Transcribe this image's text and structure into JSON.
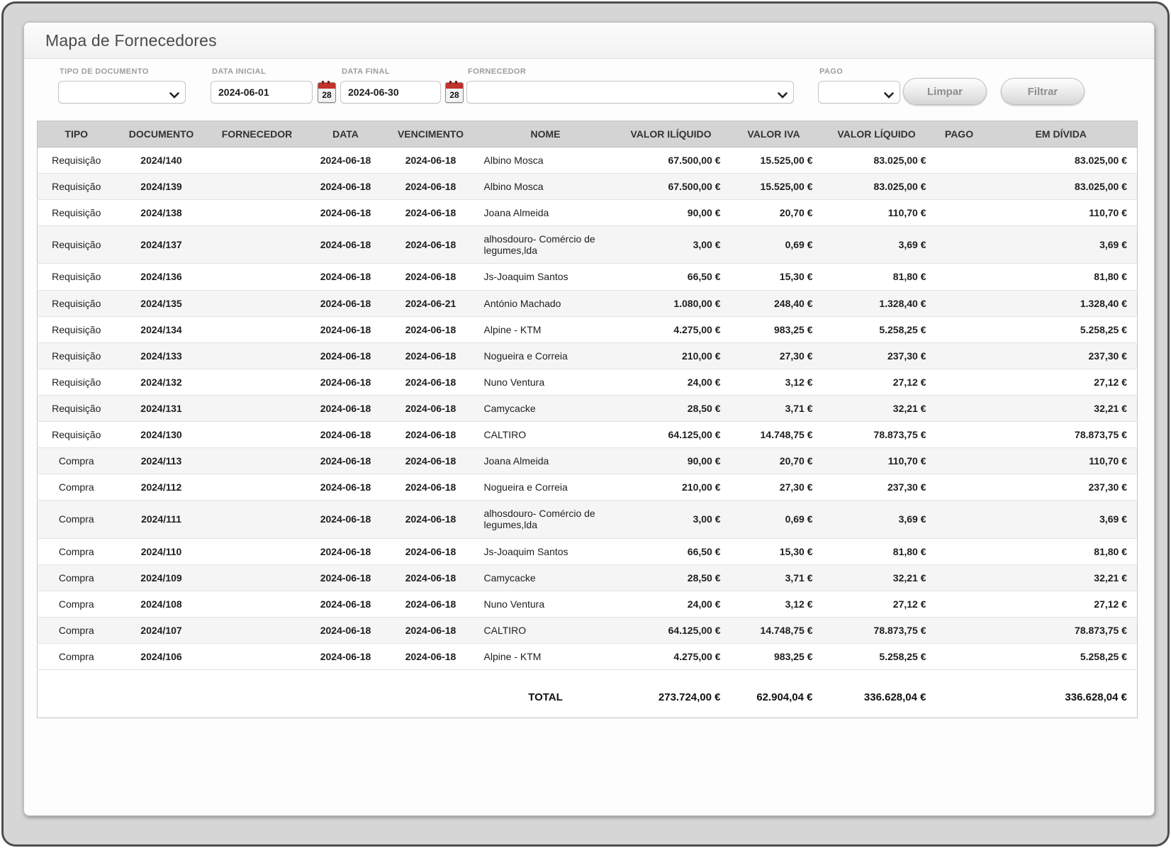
{
  "window": {
    "title": "Mapa de Fornecedores"
  },
  "filters": {
    "tipo_documento": {
      "label": "TIPO DE DOCUMENTO",
      "value": ""
    },
    "data_inicial": {
      "label": "DATA INICIAL",
      "value": "2024-06-01"
    },
    "data_final": {
      "label": "DATA FINAL",
      "value": "2024-06-30"
    },
    "fornecedor": {
      "label": "FORNECEDOR",
      "value": ""
    },
    "pago": {
      "label": "PAGO",
      "value": ""
    },
    "calendar_day": "28",
    "buttons": {
      "limpar": "Limpar",
      "filtrar": "Filtrar"
    }
  },
  "colors": {
    "calendar_red": "#c1322a",
    "table_header_bg": "#d4d4d4",
    "row_alt_bg": "#f5f5f5"
  },
  "table": {
    "columns": [
      {
        "key": "tipo",
        "label": "TIPO"
      },
      {
        "key": "documento",
        "label": "DOCUMENTO"
      },
      {
        "key": "fornecedor",
        "label": "FORNECEDOR"
      },
      {
        "key": "data",
        "label": "DATA"
      },
      {
        "key": "vencimento",
        "label": "VENCIMENTO"
      },
      {
        "key": "nome",
        "label": "NOME"
      },
      {
        "key": "valor_iliquido",
        "label": "VALOR ILÍQUIDO"
      },
      {
        "key": "valor_iva",
        "label": "VALOR IVA"
      },
      {
        "key": "valor_liquido",
        "label": "VALOR LÍQUIDO"
      },
      {
        "key": "pago",
        "label": "PAGO"
      },
      {
        "key": "em_divida",
        "label": "EM DÍVIDA"
      }
    ],
    "rows": [
      {
        "tipo": "Requisição",
        "documento": "2024/140",
        "fornecedor": "",
        "data": "2024-06-18",
        "vencimento": "2024-06-18",
        "nome": "Albino Mosca",
        "valor_iliquido": "67.500,00 €",
        "valor_iva": "15.525,00 €",
        "valor_liquido": "83.025,00 €",
        "pago": "",
        "em_divida": "83.025,00 €"
      },
      {
        "tipo": "Requisição",
        "documento": "2024/139",
        "fornecedor": "",
        "data": "2024-06-18",
        "vencimento": "2024-06-18",
        "nome": "Albino Mosca",
        "valor_iliquido": "67.500,00 €",
        "valor_iva": "15.525,00 €",
        "valor_liquido": "83.025,00 €",
        "pago": "",
        "em_divida": "83.025,00 €"
      },
      {
        "tipo": "Requisição",
        "documento": "2024/138",
        "fornecedor": "",
        "data": "2024-06-18",
        "vencimento": "2024-06-18",
        "nome": "Joana Almeida",
        "valor_iliquido": "90,00 €",
        "valor_iva": "20,70 €",
        "valor_liquido": "110,70 €",
        "pago": "",
        "em_divida": "110,70 €"
      },
      {
        "tipo": "Requisição",
        "documento": "2024/137",
        "fornecedor": "",
        "data": "2024-06-18",
        "vencimento": "2024-06-18",
        "nome": "alhosdouro- Comércio de legumes,lda",
        "valor_iliquido": "3,00 €",
        "valor_iva": "0,69 €",
        "valor_liquido": "3,69 €",
        "pago": "",
        "em_divida": "3,69 €"
      },
      {
        "tipo": "Requisição",
        "documento": "2024/136",
        "fornecedor": "",
        "data": "2024-06-18",
        "vencimento": "2024-06-18",
        "nome": "Js-Joaquim Santos",
        "valor_iliquido": "66,50 €",
        "valor_iva": "15,30 €",
        "valor_liquido": "81,80 €",
        "pago": "",
        "em_divida": "81,80 €"
      },
      {
        "tipo": "Requisição",
        "documento": "2024/135",
        "fornecedor": "",
        "data": "2024-06-18",
        "vencimento": "2024-06-21",
        "nome": "António Machado",
        "valor_iliquido": "1.080,00 €",
        "valor_iva": "248,40 €",
        "valor_liquido": "1.328,40 €",
        "pago": "",
        "em_divida": "1.328,40 €"
      },
      {
        "tipo": "Requisição",
        "documento": "2024/134",
        "fornecedor": "",
        "data": "2024-06-18",
        "vencimento": "2024-06-18",
        "nome": "Alpine - KTM",
        "valor_iliquido": "4.275,00 €",
        "valor_iva": "983,25 €",
        "valor_liquido": "5.258,25 €",
        "pago": "",
        "em_divida": "5.258,25 €"
      },
      {
        "tipo": "Requisição",
        "documento": "2024/133",
        "fornecedor": "",
        "data": "2024-06-18",
        "vencimento": "2024-06-18",
        "nome": "Nogueira e Correia",
        "valor_iliquido": "210,00 €",
        "valor_iva": "27,30 €",
        "valor_liquido": "237,30 €",
        "pago": "",
        "em_divida": "237,30 €"
      },
      {
        "tipo": "Requisição",
        "documento": "2024/132",
        "fornecedor": "",
        "data": "2024-06-18",
        "vencimento": "2024-06-18",
        "nome": "Nuno Ventura",
        "valor_iliquido": "24,00 €",
        "valor_iva": "3,12 €",
        "valor_liquido": "27,12 €",
        "pago": "",
        "em_divida": "27,12 €"
      },
      {
        "tipo": "Requisição",
        "documento": "2024/131",
        "fornecedor": "",
        "data": "2024-06-18",
        "vencimento": "2024-06-18",
        "nome": "Camycacke",
        "valor_iliquido": "28,50 €",
        "valor_iva": "3,71 €",
        "valor_liquido": "32,21 €",
        "pago": "",
        "em_divida": "32,21 €"
      },
      {
        "tipo": "Requisição",
        "documento": "2024/130",
        "fornecedor": "",
        "data": "2024-06-18",
        "vencimento": "2024-06-18",
        "nome": "CALTIRO",
        "valor_iliquido": "64.125,00 €",
        "valor_iva": "14.748,75 €",
        "valor_liquido": "78.873,75 €",
        "pago": "",
        "em_divida": "78.873,75 €"
      },
      {
        "tipo": "Compra",
        "documento": "2024/113",
        "fornecedor": "",
        "data": "2024-06-18",
        "vencimento": "2024-06-18",
        "nome": "Joana Almeida",
        "valor_iliquido": "90,00 €",
        "valor_iva": "20,70 €",
        "valor_liquido": "110,70 €",
        "pago": "",
        "em_divida": "110,70 €"
      },
      {
        "tipo": "Compra",
        "documento": "2024/112",
        "fornecedor": "",
        "data": "2024-06-18",
        "vencimento": "2024-06-18",
        "nome": "Nogueira e Correia",
        "valor_iliquido": "210,00 €",
        "valor_iva": "27,30 €",
        "valor_liquido": "237,30 €",
        "pago": "",
        "em_divida": "237,30 €"
      },
      {
        "tipo": "Compra",
        "documento": "2024/111",
        "fornecedor": "",
        "data": "2024-06-18",
        "vencimento": "2024-06-18",
        "nome": "alhosdouro- Comércio de legumes,lda",
        "valor_iliquido": "3,00 €",
        "valor_iva": "0,69 €",
        "valor_liquido": "3,69 €",
        "pago": "",
        "em_divida": "3,69 €"
      },
      {
        "tipo": "Compra",
        "documento": "2024/110",
        "fornecedor": "",
        "data": "2024-06-18",
        "vencimento": "2024-06-18",
        "nome": "Js-Joaquim Santos",
        "valor_iliquido": "66,50 €",
        "valor_iva": "15,30 €",
        "valor_liquido": "81,80 €",
        "pago": "",
        "em_divida": "81,80 €"
      },
      {
        "tipo": "Compra",
        "documento": "2024/109",
        "fornecedor": "",
        "data": "2024-06-18",
        "vencimento": "2024-06-18",
        "nome": "Camycacke",
        "valor_iliquido": "28,50 €",
        "valor_iva": "3,71 €",
        "valor_liquido": "32,21 €",
        "pago": "",
        "em_divida": "32,21 €"
      },
      {
        "tipo": "Compra",
        "documento": "2024/108",
        "fornecedor": "",
        "data": "2024-06-18",
        "vencimento": "2024-06-18",
        "nome": "Nuno Ventura",
        "valor_iliquido": "24,00 €",
        "valor_iva": "3,12 €",
        "valor_liquido": "27,12 €",
        "pago": "",
        "em_divida": "27,12 €"
      },
      {
        "tipo": "Compra",
        "documento": "2024/107",
        "fornecedor": "",
        "data": "2024-06-18",
        "vencimento": "2024-06-18",
        "nome": "CALTIRO",
        "valor_iliquido": "64.125,00 €",
        "valor_iva": "14.748,75 €",
        "valor_liquido": "78.873,75 €",
        "pago": "",
        "em_divida": "78.873,75 €"
      },
      {
        "tipo": "Compra",
        "documento": "2024/106",
        "fornecedor": "",
        "data": "2024-06-18",
        "vencimento": "2024-06-18",
        "nome": "Alpine - KTM",
        "valor_iliquido": "4.275,00 €",
        "valor_iva": "983,25 €",
        "valor_liquido": "5.258,25 €",
        "pago": "",
        "em_divida": "5.258,25 €"
      }
    ],
    "total": {
      "nome": "TOTAL",
      "valor_iliquido": "273.724,00 €",
      "valor_iva": "62.904,04 €",
      "valor_liquido": "336.628,04 €",
      "em_divida": "336.628,04 €"
    }
  }
}
